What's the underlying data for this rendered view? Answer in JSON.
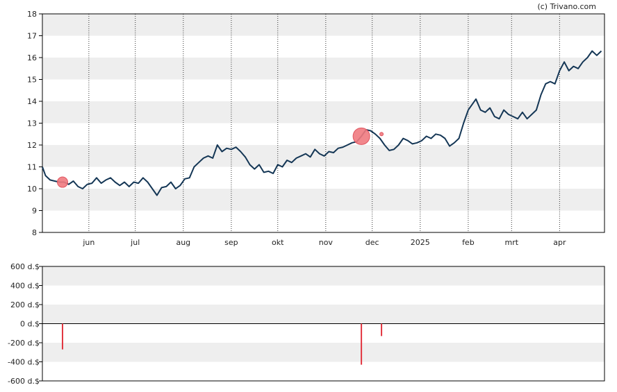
{
  "credit": "(c) Trivano.com",
  "colors": {
    "band": "#eeeeee",
    "price_line": "#143655",
    "marker": "#f07a80",
    "marker_stroke": "#e05560",
    "bar": "#e2343f",
    "axis": "#000000"
  },
  "chart_data": [
    {
      "type": "line",
      "ylim": [
        8,
        18
      ],
      "yticks": [
        "8",
        "9",
        "10",
        "11",
        "12",
        "13",
        "14",
        "15",
        "16",
        "17",
        "18"
      ],
      "xlim": [
        "2024-05-02",
        "2025-04-30"
      ],
      "month_ticks": [
        {
          "label": "jun",
          "date": "2024-06-01"
        },
        {
          "label": "jul",
          "date": "2024-07-01"
        },
        {
          "label": "aug",
          "date": "2024-08-01"
        },
        {
          "label": "sep",
          "date": "2024-09-01"
        },
        {
          "label": "okt",
          "date": "2024-10-01"
        },
        {
          "label": "nov",
          "date": "2024-11-01"
        },
        {
          "label": "dec",
          "date": "2024-12-01"
        },
        {
          "label": "2025",
          "date": "2025-01-01"
        },
        {
          "label": "feb",
          "date": "2025-02-01"
        },
        {
          "label": "mrt",
          "date": "2025-03-01"
        },
        {
          "label": "apr",
          "date": "2025-04-01"
        }
      ],
      "series": [
        {
          "points": [
            [
              "2024-05-02",
              11.0
            ],
            [
              "2024-05-04",
              10.6
            ],
            [
              "2024-05-07",
              10.4
            ],
            [
              "2024-05-10",
              10.35
            ],
            [
              "2024-05-13",
              10.3
            ],
            [
              "2024-05-16",
              10.3
            ],
            [
              "2024-05-19",
              10.2
            ],
            [
              "2024-05-22",
              10.35
            ],
            [
              "2024-05-25",
              10.1
            ],
            [
              "2024-05-28",
              10.0
            ],
            [
              "2024-05-31",
              10.2
            ],
            [
              "2024-06-03",
              10.25
            ],
            [
              "2024-06-06",
              10.5
            ],
            [
              "2024-06-09",
              10.25
            ],
            [
              "2024-06-12",
              10.4
            ],
            [
              "2024-06-15",
              10.5
            ],
            [
              "2024-06-18",
              10.3
            ],
            [
              "2024-06-21",
              10.15
            ],
            [
              "2024-06-24",
              10.3
            ],
            [
              "2024-06-27",
              10.1
            ],
            [
              "2024-06-30",
              10.3
            ],
            [
              "2024-07-03",
              10.25
            ],
            [
              "2024-07-06",
              10.5
            ],
            [
              "2024-07-09",
              10.3
            ],
            [
              "2024-07-12",
              10.0
            ],
            [
              "2024-07-15",
              9.7
            ],
            [
              "2024-07-18",
              10.05
            ],
            [
              "2024-07-21",
              10.1
            ],
            [
              "2024-07-24",
              10.3
            ],
            [
              "2024-07-27",
              10.0
            ],
            [
              "2024-07-30",
              10.15
            ],
            [
              "2024-08-02",
              10.45
            ],
            [
              "2024-08-05",
              10.5
            ],
            [
              "2024-08-08",
              11.0
            ],
            [
              "2024-08-11",
              11.2
            ],
            [
              "2024-08-14",
              11.4
            ],
            [
              "2024-08-17",
              11.5
            ],
            [
              "2024-08-20",
              11.4
            ],
            [
              "2024-08-23",
              12.0
            ],
            [
              "2024-08-26",
              11.7
            ],
            [
              "2024-08-29",
              11.85
            ],
            [
              "2024-09-01",
              11.8
            ],
            [
              "2024-09-04",
              11.9
            ],
            [
              "2024-09-07",
              11.7
            ],
            [
              "2024-09-10",
              11.45
            ],
            [
              "2024-09-13",
              11.1
            ],
            [
              "2024-09-16",
              10.9
            ],
            [
              "2024-09-19",
              11.1
            ],
            [
              "2024-09-22",
              10.75
            ],
            [
              "2024-09-25",
              10.8
            ],
            [
              "2024-09-28",
              10.7
            ],
            [
              "2024-10-01",
              11.1
            ],
            [
              "2024-10-04",
              11.0
            ],
            [
              "2024-10-07",
              11.3
            ],
            [
              "2024-10-10",
              11.2
            ],
            [
              "2024-10-13",
              11.4
            ],
            [
              "2024-10-16",
              11.5
            ],
            [
              "2024-10-19",
              11.6
            ],
            [
              "2024-10-22",
              11.45
            ],
            [
              "2024-10-25",
              11.8
            ],
            [
              "2024-10-28",
              11.6
            ],
            [
              "2024-10-31",
              11.5
            ],
            [
              "2024-11-03",
              11.7
            ],
            [
              "2024-11-06",
              11.65
            ],
            [
              "2024-11-09",
              11.85
            ],
            [
              "2024-11-12",
              11.9
            ],
            [
              "2024-11-15",
              12.0
            ],
            [
              "2024-11-18",
              12.1
            ],
            [
              "2024-11-21",
              12.15
            ],
            [
              "2024-11-24",
              12.4
            ],
            [
              "2024-11-27",
              12.7
            ],
            [
              "2024-11-30",
              12.65
            ],
            [
              "2024-12-03",
              12.5
            ],
            [
              "2024-12-06",
              12.3
            ],
            [
              "2024-12-09",
              12.0
            ],
            [
              "2024-12-12",
              11.75
            ],
            [
              "2024-12-15",
              11.8
            ],
            [
              "2024-12-18",
              12.0
            ],
            [
              "2024-12-21",
              12.3
            ],
            [
              "2024-12-24",
              12.2
            ],
            [
              "2024-12-27",
              12.05
            ],
            [
              "2024-12-30",
              12.1
            ],
            [
              "2025-01-02",
              12.2
            ],
            [
              "2025-01-05",
              12.4
            ],
            [
              "2025-01-08",
              12.3
            ],
            [
              "2025-01-11",
              12.5
            ],
            [
              "2025-01-14",
              12.45
            ],
            [
              "2025-01-17",
              12.3
            ],
            [
              "2025-01-20",
              11.95
            ],
            [
              "2025-01-23",
              12.1
            ],
            [
              "2025-01-26",
              12.3
            ],
            [
              "2025-01-29",
              13.0
            ],
            [
              "2025-02-01",
              13.6
            ],
            [
              "2025-02-03",
              13.8
            ],
            [
              "2025-02-06",
              14.1
            ],
            [
              "2025-02-09",
              13.6
            ],
            [
              "2025-02-12",
              13.5
            ],
            [
              "2025-02-15",
              13.7
            ],
            [
              "2025-02-18",
              13.3
            ],
            [
              "2025-02-21",
              13.2
            ],
            [
              "2025-02-24",
              13.6
            ],
            [
              "2025-02-27",
              13.4
            ],
            [
              "2025-03-02",
              13.3
            ],
            [
              "2025-03-05",
              13.2
            ],
            [
              "2025-03-08",
              13.5
            ],
            [
              "2025-03-11",
              13.2
            ],
            [
              "2025-03-14",
              13.4
            ],
            [
              "2025-03-17",
              13.6
            ],
            [
              "2025-03-20",
              14.3
            ],
            [
              "2025-03-23",
              14.8
            ],
            [
              "2025-03-26",
              14.9
            ],
            [
              "2025-03-29",
              14.8
            ],
            [
              "2025-04-01",
              15.4
            ],
            [
              "2025-04-04",
              15.8
            ],
            [
              "2025-04-07",
              15.4
            ],
            [
              "2025-04-10",
              15.6
            ],
            [
              "2025-04-13",
              15.5
            ],
            [
              "2025-04-16",
              15.8
            ],
            [
              "2025-04-19",
              16.0
            ],
            [
              "2025-04-22",
              16.3
            ],
            [
              "2025-04-25",
              16.1
            ],
            [
              "2025-04-28",
              16.3
            ]
          ]
        }
      ],
      "markers": [
        {
          "date": "2024-05-15",
          "value": 10.3,
          "size": "small"
        },
        {
          "date": "2024-11-24",
          "value": 12.4,
          "size": "large"
        },
        {
          "date": "2024-12-07",
          "value": 12.5,
          "size": "tiny"
        }
      ],
      "grid": "alternating horizontal bands, dotted vertical month lines"
    },
    {
      "type": "bar",
      "ylim": [
        -600,
        600
      ],
      "yticks": [
        "600 d.$",
        "400 d.$",
        "200 d.$",
        "0 d.$",
        "-200 d.$",
        "-400 d.$",
        "-600 d.$"
      ],
      "bars": [
        {
          "date": "2024-05-15",
          "value": -270
        },
        {
          "date": "2024-11-24",
          "value": -430
        },
        {
          "date": "2024-12-07",
          "value": -130
        }
      ],
      "grid": "alternating horizontal bands"
    }
  ]
}
